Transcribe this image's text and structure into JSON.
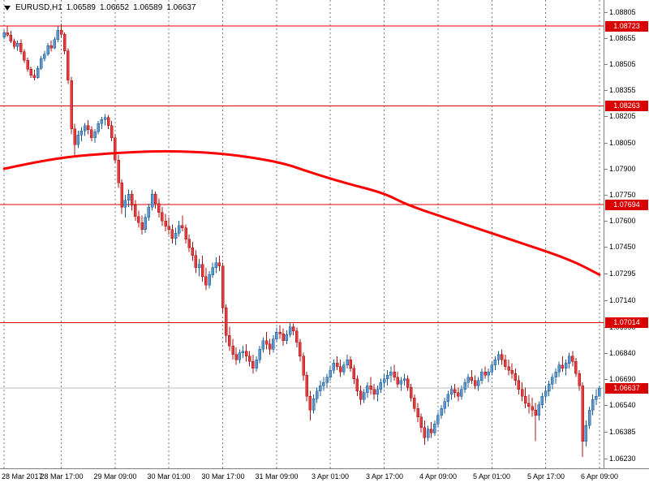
{
  "header": {
    "symbol_period": "EURUSD,H1",
    "open": "1.06589",
    "high": "1.06652",
    "low": "1.06589",
    "close": "1.06637"
  },
  "colors": {
    "background": "#ffffff",
    "axis_text": "#000000",
    "grid_line": "#7a7a7a",
    "separator": "#7f7f7f",
    "bull_fill": "#5a96cf",
    "bull_border": "#1c5c94",
    "bear_fill": "#e23b3b",
    "bear_border": "#a81616",
    "hline_red": "#e00000",
    "ma_red": "#ff0000",
    "price_label_bg": "#d90000",
    "price_label_text": "#ffffff",
    "current_line": "#b9b9b9"
  },
  "chart_data": {
    "type": "candlestick",
    "title": "EURUSD,H1",
    "symbol": "EURUSD",
    "timeframe": "H1",
    "legend": "none",
    "grid": "vertical-dashed-period-separators",
    "y_axis": {
      "side": "right",
      "top_price": 1.08873,
      "bottom_price": 1.06174,
      "ticks": [
        "1.08805",
        "1.08655",
        "1.08505",
        "1.08355",
        "1.08205",
        "1.08050",
        "1.07900",
        "1.07750",
        "1.07600",
        "1.07450",
        "1.07295",
        "1.07140",
        "1.06990",
        "1.06840",
        "1.06690",
        "1.06540",
        "1.06385",
        "1.06230"
      ]
    },
    "x_axis": {
      "labels": [
        "28 Mar 2017",
        "28 Mar 17:00",
        "29 Mar 09:00",
        "30 Mar 01:00",
        "30 Mar 17:00",
        "31 Mar 09:00",
        "3 Apr 01:00",
        "3 Apr 17:00",
        "4 Apr 09:00",
        "5 Apr 01:00",
        "5 Apr 17:00",
        "6 Apr 09:00"
      ],
      "label_indices": [
        0,
        17,
        33,
        49,
        65,
        81,
        97,
        113,
        129,
        145,
        161,
        177
      ]
    },
    "horizontal_lines": [
      {
        "price": 1.08723,
        "label": "1.08723"
      },
      {
        "price": 1.08263,
        "label": "1.08263"
      },
      {
        "price": 1.07694,
        "label": "1.07694"
      },
      {
        "price": 1.07014,
        "label": "1.07014"
      }
    ],
    "current_price": {
      "price": 1.06637,
      "label": "1.06637"
    },
    "moving_average": {
      "points": [
        [
          0,
          1.079
        ],
        [
          14,
          1.0796
        ],
        [
          31,
          1.0799
        ],
        [
          48,
          1.08005
        ],
        [
          65,
          1.0799
        ],
        [
          82,
          1.0794
        ],
        [
          91,
          1.0788
        ],
        [
          101,
          1.0782
        ],
        [
          113,
          1.0776
        ],
        [
          120,
          1.0769
        ],
        [
          134,
          1.076
        ],
        [
          151,
          1.0749
        ],
        [
          168,
          1.0738
        ],
        [
          177,
          1.0729
        ]
      ]
    },
    "candles": [
      [
        1.0866,
        1.087,
        1.08645,
        1.08685
      ],
      [
        1.08685,
        1.0872,
        1.0866,
        1.0867
      ],
      [
        1.0867,
        1.08695,
        1.08625,
        1.08635
      ],
      [
        1.08635,
        1.0865,
        1.0859,
        1.08605
      ],
      [
        1.08605,
        1.0864,
        1.0858,
        1.08625
      ],
      [
        1.08625,
        1.08645,
        1.0856,
        1.08575
      ],
      [
        1.08575,
        1.0859,
        1.0851,
        1.08525
      ],
      [
        1.08525,
        1.0854,
        1.0846,
        1.08475
      ],
      [
        1.08475,
        1.0849,
        1.08425,
        1.0844
      ],
      [
        1.0844,
        1.0847,
        1.0841,
        1.08425
      ],
      [
        1.08425,
        1.08495,
        1.0842,
        1.0848
      ],
      [
        1.0848,
        1.0855,
        1.0847,
        1.08535
      ],
      [
        1.08535,
        1.0858,
        1.0852,
        1.0856
      ],
      [
        1.0856,
        1.08625,
        1.0855,
        1.0861
      ],
      [
        1.0861,
        1.0864,
        1.08575,
        1.08595
      ],
      [
        1.08595,
        1.0866,
        1.0859,
        1.08645
      ],
      [
        1.08645,
        1.0872,
        1.0863,
        1.087
      ],
      [
        1.087,
        1.08735,
        1.08655,
        1.08675
      ],
      [
        1.08675,
        1.08685,
        1.0856,
        1.0858
      ],
      [
        1.0858,
        1.08595,
        1.0839,
        1.0841
      ],
      [
        1.0841,
        1.0843,
        1.081,
        1.0813
      ],
      [
        1.0813,
        1.0816,
        1.0798,
        1.0804
      ],
      [
        1.0804,
        1.0812,
        1.0802,
        1.08095
      ],
      [
        1.08095,
        1.0814,
        1.0806,
        1.0812
      ],
      [
        1.0812,
        1.08165,
        1.0809,
        1.0815
      ],
      [
        1.0815,
        1.0818,
        1.081,
        1.08125
      ],
      [
        1.08125,
        1.08145,
        1.0806,
        1.0808
      ],
      [
        1.0808,
        1.0813,
        1.0805,
        1.08115
      ],
      [
        1.08115,
        1.08175,
        1.081,
        1.0816
      ],
      [
        1.0816,
        1.082,
        1.0813,
        1.08185
      ],
      [
        1.08185,
        1.08215,
        1.0815,
        1.08195
      ],
      [
        1.08195,
        1.0821,
        1.0813,
        1.0815
      ],
      [
        1.0815,
        1.08175,
        1.0806,
        1.0808
      ],
      [
        1.0808,
        1.081,
        1.0793,
        1.0795
      ],
      [
        1.0795,
        1.0798,
        1.0779,
        1.0782
      ],
      [
        1.0782,
        1.0784,
        1.0764,
        1.0768
      ],
      [
        1.0768,
        1.0775,
        1.0762,
        1.0772
      ],
      [
        1.0772,
        1.0778,
        1.0768,
        1.07755
      ],
      [
        1.07755,
        1.07775,
        1.0766,
        1.0769
      ],
      [
        1.0769,
        1.0772,
        1.076,
        1.07625
      ],
      [
        1.07625,
        1.0766,
        1.0756,
        1.0759
      ],
      [
        1.0759,
        1.0763,
        1.0752,
        1.0755
      ],
      [
        1.0755,
        1.0764,
        1.0753,
        1.0762
      ],
      [
        1.0762,
        1.077,
        1.076,
        1.0768
      ],
      [
        1.0768,
        1.0778,
        1.0766,
        1.07755
      ],
      [
        1.07755,
        1.0777,
        1.0767,
        1.077
      ],
      [
        1.077,
        1.0773,
        1.0762,
        1.0765
      ],
      [
        1.0765,
        1.0768,
        1.0757,
        1.076
      ],
      [
        1.076,
        1.0764,
        1.0754,
        1.0757
      ],
      [
        1.0757,
        1.0762,
        1.0752,
        1.0755
      ],
      [
        1.0755,
        1.0758,
        1.0747,
        1.075
      ],
      [
        1.075,
        1.0756,
        1.0746,
        1.0753
      ],
      [
        1.0753,
        1.076,
        1.0751,
        1.07575
      ],
      [
        1.07575,
        1.0763,
        1.0754,
        1.0756
      ],
      [
        1.0756,
        1.0758,
        1.0747,
        1.07495
      ],
      [
        1.07495,
        1.0752,
        1.0742,
        1.07445
      ],
      [
        1.07445,
        1.0748,
        1.0737,
        1.074
      ],
      [
        1.074,
        1.0743,
        1.073,
        1.0733
      ],
      [
        1.0733,
        1.0738,
        1.0728,
        1.0735
      ],
      [
        1.0735,
        1.074,
        1.0725,
        1.0728
      ],
      [
        1.0728,
        1.0733,
        1.072,
        1.0723
      ],
      [
        1.0723,
        1.0731,
        1.0721,
        1.0729
      ],
      [
        1.0729,
        1.0736,
        1.0727,
        1.0733
      ],
      [
        1.0733,
        1.0739,
        1.073,
        1.0736
      ],
      [
        1.0736,
        1.074,
        1.0731,
        1.0734
      ],
      [
        1.0734,
        1.0736,
        1.0707,
        1.071
      ],
      [
        1.071,
        1.0712,
        1.069,
        1.0694
      ],
      [
        1.0694,
        1.0699,
        1.0685,
        1.0688
      ],
      [
        1.0688,
        1.0692,
        1.068,
        1.0683
      ],
      [
        1.0683,
        1.0687,
        1.0677,
        1.068
      ],
      [
        1.068,
        1.0686,
        1.0678,
        1.0684
      ],
      [
        1.0684,
        1.0688,
        1.0681,
        1.0685
      ],
      [
        1.0685,
        1.0689,
        1.0679,
        1.0682
      ],
      [
        1.0682,
        1.0685,
        1.0676,
        1.0679
      ],
      [
        1.0679,
        1.0683,
        1.0672,
        1.0675
      ],
      [
        1.0675,
        1.0682,
        1.0673,
        1.068
      ],
      [
        1.068,
        1.0688,
        1.0678,
        1.0686
      ],
      [
        1.0686,
        1.0693,
        1.0684,
        1.0691
      ],
      [
        1.0691,
        1.0696,
        1.0686,
        1.0689
      ],
      [
        1.0689,
        1.0692,
        1.0683,
        1.0686
      ],
      [
        1.0686,
        1.0694,
        1.0684,
        1.0692
      ],
      [
        1.0692,
        1.06985,
        1.069,
        1.0696
      ],
      [
        1.0696,
        1.07,
        1.0692,
        1.0695
      ],
      [
        1.0695,
        1.0698,
        1.0688,
        1.0691
      ],
      [
        1.0691,
        1.0697,
        1.0689,
        1.06945
      ],
      [
        1.06945,
        1.07015,
        1.0693,
        1.0699
      ],
      [
        1.0699,
        1.0701,
        1.0694,
        1.06965
      ],
      [
        1.06965,
        1.06985,
        1.0687,
        1.069
      ],
      [
        1.069,
        1.0692,
        1.0679,
        1.0682
      ],
      [
        1.0682,
        1.0684,
        1.0668,
        1.0671
      ],
      [
        1.0671,
        1.0673,
        1.0656,
        1.0659
      ],
      [
        1.0659,
        1.0662,
        1.0645,
        1.0651
      ],
      [
        1.0651,
        1.066,
        1.0649,
        1.06575
      ],
      [
        1.06575,
        1.0664,
        1.0655,
        1.0662
      ],
      [
        1.0662,
        1.0668,
        1.0659,
        1.0665
      ],
      [
        1.0665,
        1.067,
        1.0662,
        1.0667
      ],
      [
        1.0667,
        1.0672,
        1.0664,
        1.067
      ],
      [
        1.067,
        1.0676,
        1.0668,
        1.0674
      ],
      [
        1.0674,
        1.068,
        1.0672,
        1.0678
      ],
      [
        1.0678,
        1.0682,
        1.0674,
        1.0676
      ],
      [
        1.0676,
        1.068,
        1.067,
        1.0673
      ],
      [
        1.0673,
        1.0679,
        1.0671,
        1.0677
      ],
      [
        1.0677,
        1.0683,
        1.0675,
        1.068
      ],
      [
        1.068,
        1.0682,
        1.0673,
        1.0675
      ],
      [
        1.0675,
        1.0677,
        1.0666,
        1.0669
      ],
      [
        1.0669,
        1.0671,
        1.0659,
        1.0662
      ],
      [
        1.0662,
        1.0665,
        1.0654,
        1.0657
      ],
      [
        1.0657,
        1.0663,
        1.0655,
        1.0661
      ],
      [
        1.0661,
        1.0667,
        1.0658,
        1.0665
      ],
      [
        1.0665,
        1.067,
        1.066,
        1.0663
      ],
      [
        1.0663,
        1.0666,
        1.0657,
        1.066
      ],
      [
        1.066,
        1.0665,
        1.0656,
        1.0663
      ],
      [
        1.0663,
        1.0669,
        1.0661,
        1.0667
      ],
      [
        1.0667,
        1.0672,
        1.0664,
        1.0669
      ],
      [
        1.0669,
        1.0674,
        1.0665,
        1.0671
      ],
      [
        1.0671,
        1.0676,
        1.0667,
        1.0673
      ],
      [
        1.0673,
        1.0677,
        1.0668,
        1.067
      ],
      [
        1.067,
        1.0673,
        1.0664,
        1.0666
      ],
      [
        1.0666,
        1.067,
        1.0662,
        1.0668
      ],
      [
        1.0668,
        1.0672,
        1.0665,
        1.0669
      ],
      [
        1.0669,
        1.0671,
        1.0662,
        1.0664
      ],
      [
        1.0664,
        1.0666,
        1.0656,
        1.0658
      ],
      [
        1.0658,
        1.066,
        1.065,
        1.0652
      ],
      [
        1.0652,
        1.0655,
        1.0644,
        1.0647
      ],
      [
        1.0647,
        1.0649,
        1.0638,
        1.0641
      ],
      [
        1.0641,
        1.0645,
        1.0631,
        1.0635
      ],
      [
        1.0635,
        1.0642,
        1.0633,
        1.064
      ],
      [
        1.064,
        1.0644,
        1.0635,
        1.0638
      ],
      [
        1.0638,
        1.0645,
        1.0636,
        1.0643
      ],
      [
        1.0643,
        1.065,
        1.0641,
        1.0648
      ],
      [
        1.0648,
        1.0654,
        1.0646,
        1.0652
      ],
      [
        1.0652,
        1.0658,
        1.0649,
        1.0656
      ],
      [
        1.0656,
        1.0662,
        1.0653,
        1.066
      ],
      [
        1.066,
        1.0665,
        1.0657,
        1.0663
      ],
      [
        1.0663,
        1.0666,
        1.0658,
        1.0661
      ],
      [
        1.0661,
        1.0664,
        1.0656,
        1.0659
      ],
      [
        1.0659,
        1.0665,
        1.0657,
        1.0663
      ],
      [
        1.0663,
        1.0669,
        1.0661,
        1.0667
      ],
      [
        1.0667,
        1.0672,
        1.0664,
        1.067
      ],
      [
        1.067,
        1.0674,
        1.0666,
        1.0668
      ],
      [
        1.0668,
        1.0671,
        1.0663,
        1.0665
      ],
      [
        1.0665,
        1.067,
        1.0662,
        1.0668
      ],
      [
        1.0668,
        1.0675,
        1.0666,
        1.0673
      ],
      [
        1.0673,
        1.0676,
        1.0669,
        1.0671
      ],
      [
        1.0671,
        1.0675,
        1.0667,
        1.0673
      ],
      [
        1.0673,
        1.0679,
        1.0671,
        1.0677
      ],
      [
        1.0677,
        1.0682,
        1.0674,
        1.068
      ],
      [
        1.068,
        1.0685,
        1.0677,
        1.0683
      ],
      [
        1.0683,
        1.0686,
        1.0677,
        1.068
      ],
      [
        1.068,
        1.0683,
        1.0674,
        1.0676
      ],
      [
        1.0676,
        1.068,
        1.0671,
        1.0674
      ],
      [
        1.0674,
        1.0678,
        1.0669,
        1.0672
      ],
      [
        1.0672,
        1.0675,
        1.0665,
        1.0668
      ],
      [
        1.0668,
        1.0671,
        1.066,
        1.0663
      ],
      [
        1.0663,
        1.0667,
        1.0656,
        1.0659
      ],
      [
        1.0659,
        1.0664,
        1.0652,
        1.0655
      ],
      [
        1.0655,
        1.066,
        1.0649,
        1.0653
      ],
      [
        1.0653,
        1.0658,
        1.0647,
        1.0651
      ],
      [
        1.0651,
        1.0655,
        1.0633,
        1.0648
      ],
      [
        1.0648,
        1.0656,
        1.0645,
        1.0654
      ],
      [
        1.0654,
        1.0661,
        1.0652,
        1.0659
      ],
      [
        1.0659,
        1.0665,
        1.0656,
        1.0662
      ],
      [
        1.0662,
        1.0668,
        1.0659,
        1.0666
      ],
      [
        1.0666,
        1.0672,
        1.0663,
        1.067
      ],
      [
        1.067,
        1.0675,
        1.0666,
        1.0673
      ],
      [
        1.0673,
        1.0679,
        1.067,
        1.0677
      ],
      [
        1.0677,
        1.0682,
        1.0673,
        1.0675
      ],
      [
        1.0675,
        1.068,
        1.0671,
        1.0678
      ],
      [
        1.0678,
        1.0684,
        1.0675,
        1.0682
      ],
      [
        1.0682,
        1.0685,
        1.0676,
        1.0679
      ],
      [
        1.0679,
        1.0681,
        1.067,
        1.0672
      ],
      [
        1.0672,
        1.0674,
        1.0662,
        1.0665
      ],
      [
        1.0665,
        1.0667,
        1.0624,
        1.0633
      ],
      [
        1.0633,
        1.0645,
        1.063,
        1.0642
      ],
      [
        1.0642,
        1.0653,
        1.064,
        1.0651
      ],
      [
        1.0651,
        1.066,
        1.0648,
        1.0657
      ],
      [
        1.0657,
        1.0663,
        1.0654,
        1.0659
      ],
      [
        1.06589,
        1.06652,
        1.06589,
        1.06637
      ]
    ]
  }
}
